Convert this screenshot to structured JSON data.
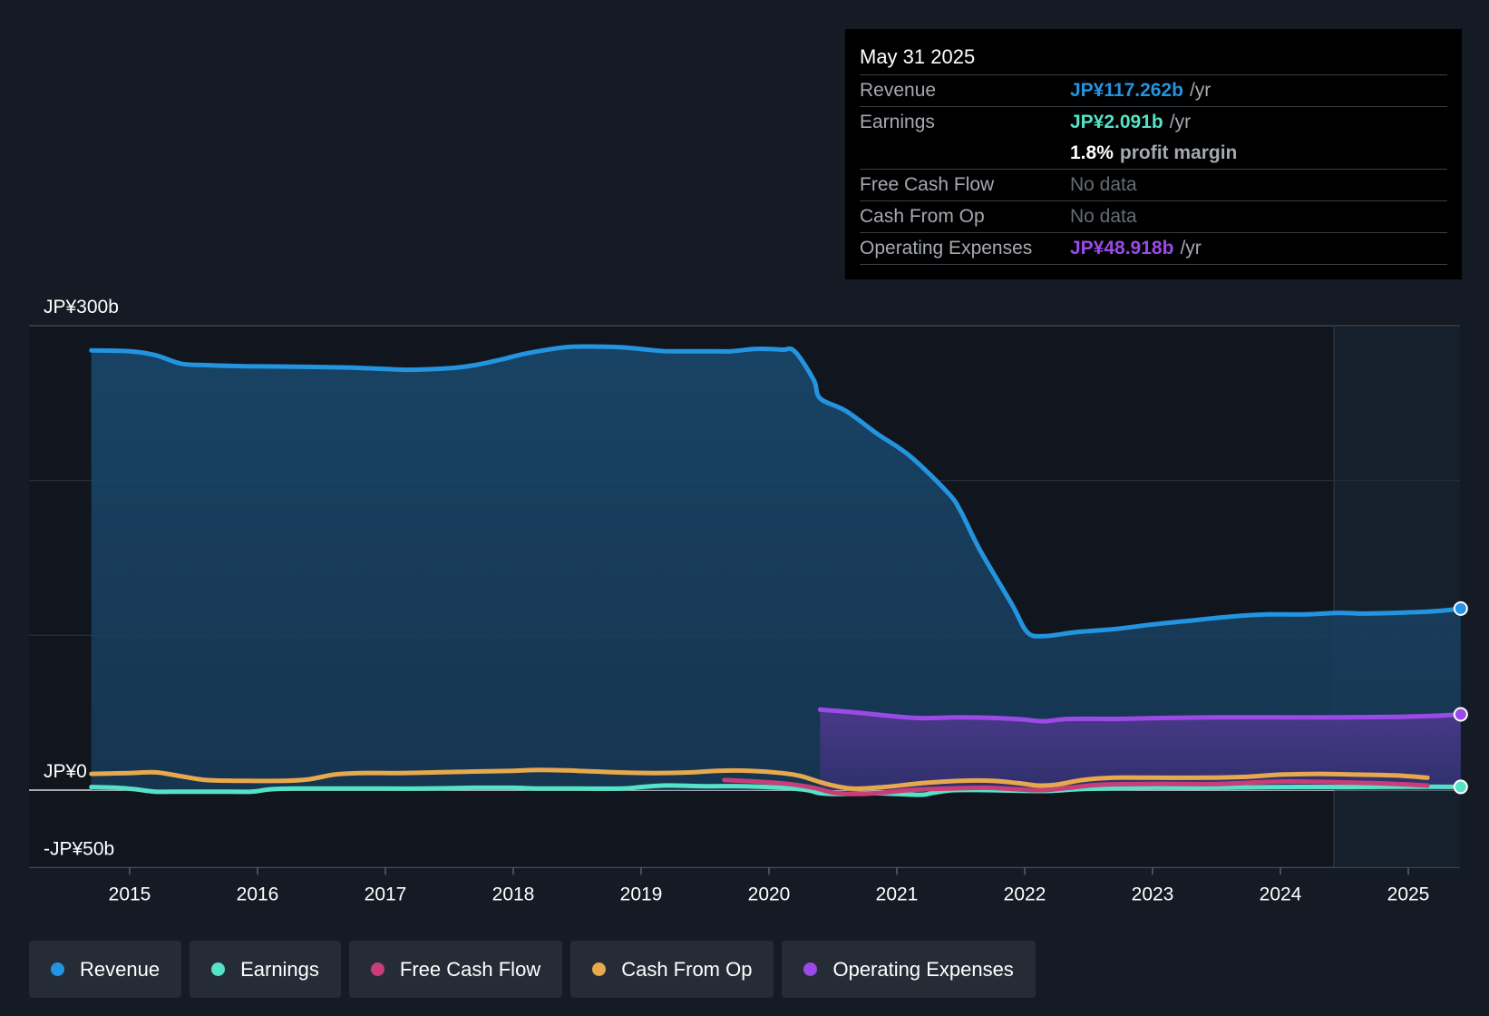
{
  "chart_data": {
    "type": "area",
    "x_axis": {
      "ticks": [
        "2015",
        "2016",
        "2017",
        "2018",
        "2019",
        "2020",
        "2021",
        "2022",
        "2023",
        "2024",
        "2025"
      ],
      "range": [
        2014.25,
        2025.45
      ]
    },
    "y_axis": {
      "unit": "JP¥ billions",
      "range": [
        -50,
        300
      ],
      "labels": [
        {
          "value": 300,
          "label": "JP¥300b"
        },
        {
          "value": 0,
          "label": "JP¥0"
        },
        {
          "value": -50,
          "label": "-JP¥50b"
        }
      ],
      "gridlines": [
        300,
        200,
        100,
        0
      ]
    },
    "forecast_shade_start": 2024.42,
    "series": [
      {
        "name": "Revenue",
        "color": "#2394df",
        "fill": true,
        "points": [
          [
            2014.7,
            284
          ],
          [
            2015.0,
            283.5
          ],
          [
            2015.2,
            281
          ],
          [
            2015.4,
            275.5
          ],
          [
            2015.6,
            274.5
          ],
          [
            2015.9,
            273.8
          ],
          [
            2016.3,
            273.5
          ],
          [
            2016.7,
            273
          ],
          [
            2017.0,
            272
          ],
          [
            2017.2,
            271.5
          ],
          [
            2017.5,
            272.5
          ],
          [
            2017.7,
            274.5
          ],
          [
            2017.9,
            278
          ],
          [
            2018.1,
            282
          ],
          [
            2018.4,
            286
          ],
          [
            2018.6,
            286.5
          ],
          [
            2018.85,
            286
          ],
          [
            2019.05,
            284.5
          ],
          [
            2019.2,
            283.5
          ],
          [
            2019.5,
            283.5
          ],
          [
            2019.7,
            283.5
          ],
          [
            2019.9,
            285
          ],
          [
            2020.1,
            284.5
          ],
          [
            2020.2,
            283.5
          ],
          [
            2020.35,
            265
          ],
          [
            2020.4,
            253
          ],
          [
            2020.6,
            245
          ],
          [
            2020.85,
            230
          ],
          [
            2021.1,
            216
          ],
          [
            2021.4,
            192
          ],
          [
            2021.5,
            180
          ],
          [
            2021.65,
            155
          ],
          [
            2021.9,
            120
          ],
          [
            2022.02,
            102
          ],
          [
            2022.15,
            99.5
          ],
          [
            2022.4,
            102
          ],
          [
            2022.7,
            104
          ],
          [
            2023.0,
            107
          ],
          [
            2023.3,
            109.5
          ],
          [
            2023.6,
            112
          ],
          [
            2023.9,
            113.5
          ],
          [
            2024.2,
            113.5
          ],
          [
            2024.45,
            114.5
          ],
          [
            2024.65,
            114
          ],
          [
            2024.9,
            114.5
          ],
          [
            2025.2,
            115.5
          ],
          [
            2025.41,
            117.262
          ]
        ],
        "end_marker": true
      },
      {
        "name": "Operating Expenses",
        "color": "#9b4ae8",
        "fill": true,
        "points": [
          [
            2020.4,
            52
          ],
          [
            2020.7,
            50
          ],
          [
            2021.0,
            47.5
          ],
          [
            2021.2,
            46.5
          ],
          [
            2021.5,
            47
          ],
          [
            2021.8,
            46.5
          ],
          [
            2022.0,
            45.5
          ],
          [
            2022.15,
            44.5
          ],
          [
            2022.35,
            46
          ],
          [
            2022.7,
            46
          ],
          [
            2023.0,
            46.5
          ],
          [
            2023.5,
            47
          ],
          [
            2024.0,
            47
          ],
          [
            2024.5,
            47
          ],
          [
            2024.9,
            47.3
          ],
          [
            2025.2,
            48
          ],
          [
            2025.41,
            48.918
          ]
        ],
        "end_marker": true
      },
      {
        "name": "Cash From Op",
        "color": "#e8a84e",
        "fill": false,
        "points": [
          [
            2014.7,
            10.5
          ],
          [
            2015.0,
            11
          ],
          [
            2015.2,
            11.5
          ],
          [
            2015.4,
            9
          ],
          [
            2015.6,
            6.5
          ],
          [
            2015.9,
            6
          ],
          [
            2016.2,
            6
          ],
          [
            2016.4,
            7
          ],
          [
            2016.6,
            10
          ],
          [
            2016.8,
            11
          ],
          [
            2017.1,
            11
          ],
          [
            2017.4,
            11.5
          ],
          [
            2017.7,
            12
          ],
          [
            2018.0,
            12.5
          ],
          [
            2018.2,
            13
          ],
          [
            2018.5,
            12.5
          ],
          [
            2018.8,
            11.5
          ],
          [
            2019.1,
            11
          ],
          [
            2019.4,
            11.5
          ],
          [
            2019.6,
            12.5
          ],
          [
            2019.85,
            12.5
          ],
          [
            2020.1,
            11
          ],
          [
            2020.25,
            9
          ],
          [
            2020.45,
            4
          ],
          [
            2020.65,
            1
          ],
          [
            2020.9,
            2
          ],
          [
            2021.2,
            4.5
          ],
          [
            2021.5,
            6
          ],
          [
            2021.75,
            6
          ],
          [
            2021.95,
            4.5
          ],
          [
            2022.1,
            3
          ],
          [
            2022.25,
            3.5
          ],
          [
            2022.45,
            6.5
          ],
          [
            2022.7,
            8
          ],
          [
            2023.0,
            8
          ],
          [
            2023.4,
            8
          ],
          [
            2023.7,
            8.5
          ],
          [
            2024.0,
            10
          ],
          [
            2024.3,
            10.5
          ],
          [
            2024.6,
            10
          ],
          [
            2024.9,
            9.5
          ],
          [
            2025.15,
            8
          ]
        ]
      },
      {
        "name": "Earnings",
        "color": "#55e2c6",
        "fill": false,
        "points": [
          [
            2014.7,
            2
          ],
          [
            2014.9,
            1.5
          ],
          [
            2015.05,
            0.5
          ],
          [
            2015.2,
            -1
          ],
          [
            2015.4,
            -1
          ],
          [
            2015.7,
            -1
          ],
          [
            2015.95,
            -1
          ],
          [
            2016.1,
            0.5
          ],
          [
            2016.3,
            1
          ],
          [
            2016.6,
            1
          ],
          [
            2017.0,
            1
          ],
          [
            2017.3,
            1
          ],
          [
            2017.7,
            1.5
          ],
          [
            2018.0,
            1.5
          ],
          [
            2018.2,
            1
          ],
          [
            2018.5,
            1
          ],
          [
            2018.85,
            1
          ],
          [
            2019.0,
            2
          ],
          [
            2019.2,
            3
          ],
          [
            2019.5,
            2.5
          ],
          [
            2019.8,
            2.5
          ],
          [
            2020.1,
            1.5
          ],
          [
            2020.3,
            0
          ],
          [
            2020.4,
            -2
          ],
          [
            2020.55,
            -2.5
          ],
          [
            2020.8,
            -2
          ],
          [
            2021.0,
            -2.5
          ],
          [
            2021.2,
            -3
          ],
          [
            2021.3,
            -1.5
          ],
          [
            2021.45,
            0
          ],
          [
            2021.7,
            0
          ],
          [
            2022.0,
            -0.5
          ],
          [
            2022.2,
            -0.5
          ],
          [
            2022.4,
            0.5
          ],
          [
            2022.6,
            1
          ],
          [
            2023.0,
            1.5
          ],
          [
            2023.5,
            1.5
          ],
          [
            2024.0,
            2
          ],
          [
            2024.5,
            2
          ],
          [
            2025.0,
            2.2
          ],
          [
            2025.41,
            2.091
          ]
        ],
        "end_marker": true
      },
      {
        "name": "Free Cash Flow",
        "color": "#c73e78",
        "fill": false,
        "points": [
          [
            2019.65,
            6.5
          ],
          [
            2019.9,
            5.5
          ],
          [
            2020.15,
            4
          ],
          [
            2020.35,
            1.5
          ],
          [
            2020.5,
            -1.5
          ],
          [
            2020.7,
            -2.5
          ],
          [
            2020.9,
            -1.5
          ],
          [
            2021.1,
            0
          ],
          [
            2021.4,
            1
          ],
          [
            2021.7,
            1.5
          ],
          [
            2021.95,
            0.5
          ],
          [
            2022.15,
            0
          ],
          [
            2022.35,
            1.5
          ],
          [
            2022.6,
            3.5
          ],
          [
            2023.0,
            4
          ],
          [
            2023.5,
            4
          ],
          [
            2024.0,
            5.5
          ],
          [
            2024.5,
            5
          ],
          [
            2024.9,
            4
          ],
          [
            2025.15,
            3
          ]
        ]
      }
    ],
    "tooltip": {
      "date": "May 31 2025",
      "rows": [
        {
          "label": "Revenue",
          "value": "JP¥117.262b",
          "unit": "/yr",
          "color": "#2394df"
        },
        {
          "label": "Earnings",
          "value": "JP¥2.091b",
          "unit": "/yr",
          "color": "#55e2c6"
        },
        {
          "label": "",
          "value": "1.8%",
          "unit": "profit margin",
          "color": "#ffffff"
        },
        {
          "label": "Free Cash Flow",
          "value": "No data",
          "unit": "",
          "color": "#676c74"
        },
        {
          "label": "Cash From Op",
          "value": "No data",
          "unit": "",
          "color": "#676c74"
        },
        {
          "label": "Operating Expenses",
          "value": "JP¥48.918b",
          "unit": "/yr",
          "color": "#9b4ae8"
        }
      ]
    },
    "legend": [
      {
        "name": "Revenue",
        "color": "#2394df"
      },
      {
        "name": "Earnings",
        "color": "#55e2c6"
      },
      {
        "name": "Free Cash Flow",
        "color": "#c73e78"
      },
      {
        "name": "Cash From Op",
        "color": "#e8a84e"
      },
      {
        "name": "Operating Expenses",
        "color": "#9b4ae8"
      }
    ]
  }
}
